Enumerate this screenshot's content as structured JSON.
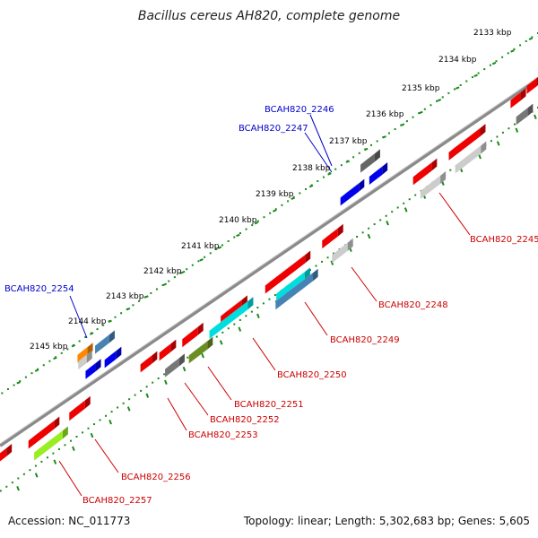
{
  "title": "Bacillus cereus AH820, complete genome",
  "footer": {
    "accession": "Accession: NC_011773",
    "summary": "Topology: linear; Length: 5,302,683 bp; Genes: 5,605"
  },
  "colors": {
    "backbone": "#8a8a8a",
    "ruler": "#1a8a1a",
    "tick_label": "#000000",
    "label_forward": "#0000cc",
    "label_reverse": "#cc0000",
    "connector_forward": "#0000cc",
    "connector_reverse": "#cc0000"
  },
  "ruler_ticks": [
    {
      "label": "2133 kbp",
      "kbp": 2133
    },
    {
      "label": "2134 kbp",
      "kbp": 2134
    },
    {
      "label": "2135 kbp",
      "kbp": 2135
    },
    {
      "label": "2136 kbp",
      "kbp": 2136
    },
    {
      "label": "2137 kbp",
      "kbp": 2137
    },
    {
      "label": "2138 kbp",
      "kbp": 2138
    },
    {
      "label": "2139 kbp",
      "kbp": 2139
    },
    {
      "label": "2140 kbp",
      "kbp": 2140
    },
    {
      "label": "2141 kbp",
      "kbp": 2141
    },
    {
      "label": "2142 kbp",
      "kbp": 2142
    },
    {
      "label": "2143 kbp",
      "kbp": 2143
    },
    {
      "label": "2144 kbp",
      "kbp": 2144
    },
    {
      "label": "2145 kbp",
      "kbp": 2145
    }
  ],
  "gene_labels": [
    {
      "id": "BCAH820_2245",
      "text": "BCAH820_2245",
      "strand": "reverse"
    },
    {
      "id": "BCAH820_2246",
      "text": "BCAH820_2246",
      "strand": "forward"
    },
    {
      "id": "BCAH820_2247",
      "text": "BCAH820_2247",
      "strand": "forward"
    },
    {
      "id": "BCAH820_2248",
      "text": "BCAH820_2248",
      "strand": "reverse"
    },
    {
      "id": "BCAH820_2249",
      "text": "BCAH820_2249",
      "strand": "reverse"
    },
    {
      "id": "BCAH820_2250",
      "text": "BCAH820_2250",
      "strand": "reverse"
    },
    {
      "id": "BCAH820_2251",
      "text": "BCAH820_2251",
      "strand": "reverse"
    },
    {
      "id": "BCAH820_2252",
      "text": "BCAH820_2252",
      "strand": "reverse"
    },
    {
      "id": "BCAH820_2253",
      "text": "BCAH820_2253",
      "strand": "reverse"
    },
    {
      "id": "BCAH820_2254",
      "text": "BCAH820_2254",
      "strand": "forward"
    },
    {
      "id": "BCAH820_2256",
      "text": "BCAH820_2256",
      "strand": "reverse"
    },
    {
      "id": "BCAH820_2257",
      "text": "BCAH820_2257",
      "strand": "reverse"
    }
  ]
}
